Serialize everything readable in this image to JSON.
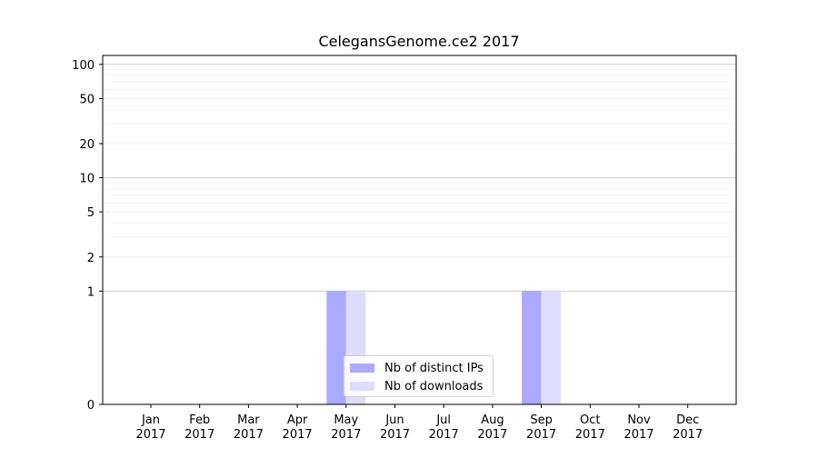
{
  "chart_data": {
    "type": "bar",
    "title": "CelegansGenome.ce2 2017",
    "xlabel": "",
    "ylabel": "",
    "yscale": "symlog",
    "yticks": [
      0,
      1,
      2,
      5,
      10,
      20,
      50,
      100
    ],
    "ytick_labels": [
      "0",
      "1",
      "2",
      "5",
      "10",
      "20",
      "50",
      "100"
    ],
    "ylim": [
      0,
      120
    ],
    "categories": [
      "Jan\n2017",
      "Feb\n2017",
      "Mar\n2017",
      "Apr\n2017",
      "May\n2017",
      "Jun\n2017",
      "Jul\n2017",
      "Aug\n2017",
      "Sep\n2017",
      "Oct\n2017",
      "Nov\n2017",
      "Dec\n2017"
    ],
    "category_lines": [
      [
        "Jan",
        "2017"
      ],
      [
        "Feb",
        "2017"
      ],
      [
        "Mar",
        "2017"
      ],
      [
        "Apr",
        "2017"
      ],
      [
        "May",
        "2017"
      ],
      [
        "Jun",
        "2017"
      ],
      [
        "Jul",
        "2017"
      ],
      [
        "Aug",
        "2017"
      ],
      [
        "Sep",
        "2017"
      ],
      [
        "Oct",
        "2017"
      ],
      [
        "Nov",
        "2017"
      ],
      [
        "Dec",
        "2017"
      ]
    ],
    "series": [
      {
        "name": "Nb of distinct IPs",
        "color": "#aaaaff",
        "values": [
          0,
          0,
          0,
          0,
          1,
          0,
          0,
          0,
          1,
          0,
          0,
          0
        ]
      },
      {
        "name": "Nb of downloads",
        "color": "#ddddff",
        "values": [
          0,
          0,
          0,
          0,
          1,
          0,
          0,
          0,
          1,
          0,
          0,
          0
        ]
      }
    ],
    "grid": true,
    "legend_position": "lower-center"
  }
}
